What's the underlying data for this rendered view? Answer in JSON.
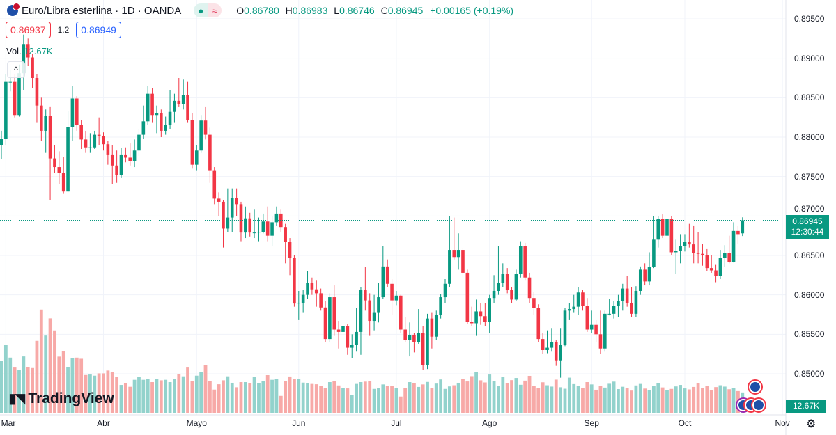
{
  "header": {
    "title": "Euro/Libra esterlina · 1D · OANDA",
    "status_dot": "●",
    "status_wave": "≈",
    "ohlc": {
      "o_label": "O",
      "o": "0.86780",
      "h_label": "H",
      "h": "0.86983",
      "l_label": "L",
      "l": "0.86746",
      "c_label": "C",
      "c": "0.86945",
      "change": "+0.00165 (+0.19%)"
    }
  },
  "trade": {
    "sell": "0.86937",
    "spread": "1.2",
    "buy": "0.86949"
  },
  "volume_legend": {
    "label": "Vol.",
    "value": "12.67K"
  },
  "collapse_icon": "^",
  "logo": {
    "mark": "TV",
    "text": "TradingView"
  },
  "price_tag": {
    "price": "0.86945",
    "countdown": "12:30:44"
  },
  "volume_tag": "12.67K",
  "colors": {
    "up": "#089981",
    "down": "#f23645",
    "up_volume": "#92d2cc",
    "down_volume": "#f7a9a7",
    "grid": "#f0f3fa"
  },
  "chart_data": {
    "type": "candlestick",
    "interval": "1D",
    "y_ticks": [
      "0.89500",
      "0.89000",
      "0.88500",
      "0.88000",
      "0.87500",
      "0.87000",
      "0.86500",
      "0.86000",
      "0.85500",
      "0.85000"
    ],
    "ylim": [
      0.8475,
      0.8975
    ],
    "x_ticks": [
      "Mar",
      "Abr",
      "Mayo",
      "Jun",
      "Jul",
      "Ago",
      "Sep",
      "Oct",
      "Nov"
    ],
    "grid": true,
    "first_open": 0.879,
    "last_open": 0.8678,
    "close": [
      0.8798,
      0.887,
      0.887,
      0.8828,
      0.8881,
      0.8918,
      0.8901,
      0.8875,
      0.884,
      0.8808,
      0.8827,
      0.8773,
      0.8762,
      0.8755,
      0.8731,
      0.8813,
      0.8849,
      0.8815,
      0.8797,
      0.8787,
      0.8787,
      0.8803,
      0.8801,
      0.8791,
      0.8778,
      0.8764,
      0.8752,
      0.8778,
      0.8774,
      0.877,
      0.8783,
      0.8803,
      0.882,
      0.8855,
      0.8828,
      0.883,
      0.8808,
      0.8815,
      0.8832,
      0.8846,
      0.8842,
      0.8853,
      0.8822,
      0.8765,
      0.8783,
      0.8821,
      0.8803,
      0.8758,
      0.8722,
      0.8718,
      0.8684,
      0.8698,
      0.8723,
      0.8715,
      0.8679,
      0.8697,
      0.8679,
      0.8679,
      0.868,
      0.8693,
      0.8675,
      0.8692,
      0.8703,
      0.8686,
      0.8667,
      0.8647,
      0.8589,
      0.859,
      0.86,
      0.8615,
      0.8607,
      0.8602,
      0.8584,
      0.8544,
      0.8597,
      0.8556,
      0.8553,
      0.856,
      0.8533,
      0.8537,
      0.8553,
      0.8606,
      0.8593,
      0.8567,
      0.8578,
      0.8597,
      0.8636,
      0.8614,
      0.8593,
      0.8599,
      0.8556,
      0.8543,
      0.8549,
      0.854,
      0.8552,
      0.8511,
      0.857,
      0.8547,
      0.8575,
      0.8597,
      0.8614,
      0.8657,
      0.8648,
      0.8657,
      0.8628,
      0.8566,
      0.8564,
      0.8579,
      0.8573,
      0.8566,
      0.8596,
      0.8605,
      0.8615,
      0.8627,
      0.8606,
      0.8594,
      0.8627,
      0.8662,
      0.8622,
      0.8596,
      0.8583,
      0.8544,
      0.853,
      0.8533,
      0.854,
      0.8517,
      0.8537,
      0.858,
      0.8582,
      0.8585,
      0.8603,
      0.8586,
      0.8556,
      0.8562,
      0.855,
      0.8532,
      0.8576,
      0.8576,
      0.8586,
      0.8592,
      0.8608,
      0.859,
      0.8576,
      0.8605,
      0.8632,
      0.8617,
      0.8635,
      0.867,
      0.8696,
      0.8675,
      0.8696,
      0.8654,
      0.8656,
      0.8662,
      0.8667,
      0.8664,
      0.8653,
      0.8652,
      0.865,
      0.8634,
      0.8631,
      0.8624,
      0.8647,
      0.8653,
      0.8642,
      0.8681,
      0.8677,
      0.86945
    ],
    "high": [
      0.8808,
      0.888,
      0.8885,
      0.888,
      0.8892,
      0.893,
      0.8925,
      0.8905,
      0.888,
      0.885,
      0.8835,
      0.8838,
      0.879,
      0.8782,
      0.8775,
      0.8833,
      0.8865,
      0.8852,
      0.8822,
      0.8808,
      0.8805,
      0.8808,
      0.8825,
      0.8806,
      0.8795,
      0.879,
      0.8783,
      0.8786,
      0.8787,
      0.8792,
      0.8797,
      0.881,
      0.884,
      0.8865,
      0.8862,
      0.884,
      0.8835,
      0.8826,
      0.886,
      0.8855,
      0.8875,
      0.8873,
      0.887,
      0.883,
      0.879,
      0.8828,
      0.8838,
      0.8812,
      0.8762,
      0.873,
      0.872,
      0.8735,
      0.8735,
      0.8735,
      0.8718,
      0.8712,
      0.8704,
      0.8708,
      0.8698,
      0.8703,
      0.8712,
      0.87,
      0.8712,
      0.8708,
      0.869,
      0.8672,
      0.865,
      0.8605,
      0.8606,
      0.863,
      0.8622,
      0.8618,
      0.8608,
      0.8592,
      0.8602,
      0.8612,
      0.8567,
      0.8588,
      0.8563,
      0.855,
      0.8583,
      0.861,
      0.8635,
      0.8602,
      0.86,
      0.8615,
      0.8662,
      0.8645,
      0.862,
      0.8605,
      0.86,
      0.8572,
      0.8565,
      0.8552,
      0.8582,
      0.856,
      0.8576,
      0.8578,
      0.858,
      0.8601,
      0.862,
      0.87,
      0.8698,
      0.8678,
      0.866,
      0.8632,
      0.8585,
      0.8594,
      0.859,
      0.859,
      0.86,
      0.8625,
      0.8662,
      0.864,
      0.8634,
      0.861,
      0.8632,
      0.8668,
      0.8666,
      0.8628,
      0.8604,
      0.8588,
      0.8552,
      0.8555,
      0.8558,
      0.8543,
      0.8558,
      0.8583,
      0.859,
      0.86,
      0.861,
      0.8606,
      0.8596,
      0.858,
      0.8568,
      0.858,
      0.858,
      0.8595,
      0.8592,
      0.86,
      0.8614,
      0.8624,
      0.861,
      0.8611,
      0.8636,
      0.864,
      0.8654,
      0.87,
      0.87,
      0.8702,
      0.8705,
      0.87,
      0.867,
      0.8677,
      0.8677,
      0.869,
      0.8688,
      0.868,
      0.8665,
      0.8658,
      0.865,
      0.8638,
      0.8657,
      0.8663,
      0.8675,
      0.8692,
      0.8688,
      0.86983
    ],
    "low": [
      0.8772,
      0.879,
      0.8858,
      0.8825,
      0.8826,
      0.886,
      0.889,
      0.8862,
      0.8818,
      0.8795,
      0.878,
      0.872,
      0.8755,
      0.874,
      0.8728,
      0.873,
      0.8795,
      0.8808,
      0.8785,
      0.878,
      0.878,
      0.8785,
      0.879,
      0.8783,
      0.8765,
      0.874,
      0.8742,
      0.8748,
      0.8768,
      0.8764,
      0.8762,
      0.8776,
      0.8798,
      0.8815,
      0.8818,
      0.8805,
      0.88,
      0.8803,
      0.881,
      0.8818,
      0.8838,
      0.8835,
      0.8818,
      0.876,
      0.8758,
      0.878,
      0.8797,
      0.8742,
      0.8715,
      0.87,
      0.866,
      0.868,
      0.868,
      0.87,
      0.8668,
      0.8672,
      0.8674,
      0.8672,
      0.8668,
      0.8678,
      0.8668,
      0.8662,
      0.8688,
      0.868,
      0.864,
      0.8625,
      0.8585,
      0.8568,
      0.8578,
      0.8595,
      0.86,
      0.8585,
      0.858,
      0.854,
      0.854,
      0.8548,
      0.8532,
      0.8548,
      0.8524,
      0.852,
      0.8528,
      0.8524,
      0.858,
      0.8548,
      0.8555,
      0.8565,
      0.8595,
      0.861,
      0.8575,
      0.8587,
      0.8552,
      0.854,
      0.8522,
      0.8527,
      0.8538,
      0.8505,
      0.8506,
      0.8532,
      0.8543,
      0.857,
      0.859,
      0.861,
      0.8645,
      0.8632,
      0.8622,
      0.8563,
      0.856,
      0.8548,
      0.8562,
      0.856,
      0.8552,
      0.859,
      0.86,
      0.861,
      0.8602,
      0.859,
      0.8592,
      0.8622,
      0.8618,
      0.859,
      0.8575,
      0.854,
      0.8525,
      0.8526,
      0.8528,
      0.851,
      0.8495,
      0.8535,
      0.8568,
      0.8578,
      0.8575,
      0.858,
      0.8553,
      0.8552,
      0.854,
      0.8525,
      0.8528,
      0.8574,
      0.857,
      0.8572,
      0.858,
      0.8585,
      0.8572,
      0.8572,
      0.86,
      0.8612,
      0.8612,
      0.8634,
      0.866,
      0.8672,
      0.8673,
      0.865,
      0.8627,
      0.864,
      0.8655,
      0.866,
      0.864,
      0.864,
      0.8637,
      0.863,
      0.8628,
      0.8616,
      0.862,
      0.8635,
      0.864,
      0.8641,
      0.8665,
      0.86746
    ],
    "volume_k": [
      31.9,
      41.3,
      33.7,
      27.7,
      26.3,
      34.4,
      28.1,
      27.4,
      43.8,
      62.7,
      47.0,
      57.4,
      50.1,
      34.3,
      37.4,
      28.1,
      33.2,
      33.7,
      33.0,
      23.2,
      23.5,
      22.8,
      24.2,
      24.2,
      25.9,
      25.2,
      22.0,
      17.2,
      18.3,
      16.1,
      20.3,
      22.0,
      20.3,
      21.0,
      18.9,
      20.6,
      20.0,
      20.3,
      18.9,
      21.0,
      23.8,
      22.4,
      27.7,
      19.6,
      22.8,
      24.9,
      29.1,
      19.6,
      14.4,
      17.6,
      20.0,
      22.4,
      18.5,
      15.8,
      18.9,
      18.9,
      18.3,
      22.0,
      18.2,
      19.7,
      23.1,
      20.3,
      20.7,
      10.6,
      19.7,
      22.3,
      20.6,
      20.6,
      18.6,
      18.3,
      17.8,
      17.6,
      16.5,
      15.5,
      18.9,
      19.7,
      16.9,
      15.5,
      15.1,
      11.1,
      17.8,
      18.9,
      19.2,
      19.5,
      14.8,
      15.5,
      17.5,
      16.4,
      16.7,
      15.3,
      10.2,
      15.5,
      18.9,
      18.1,
      16.0,
      17.5,
      19.0,
      15.2,
      18.0,
      20.5,
      14.8,
      16.3,
      17.0,
      18.5,
      21.0,
      19.3,
      22.5,
      24.8,
      20.0,
      18.7,
      23.5,
      19.6,
      16.8,
      22.0,
      18.2,
      20.1,
      21.4,
      17.3,
      19.8,
      22.7,
      16.5,
      15.4,
      18.8,
      17.0,
      16.2,
      20.4,
      15.8,
      14.9,
      21.6,
      17.7,
      16.4,
      15.2,
      18.9,
      17.5,
      14.3,
      16.8,
      15.6,
      17.9,
      19.2,
      14.7,
      16.1,
      15.5,
      13.8,
      16.9,
      17.8,
      15.0,
      14.2,
      16.6,
      18.4,
      15.7,
      13.9,
      14.8,
      16.3,
      17.2,
      15.1,
      14.5,
      16.0,
      18.1,
      15.4,
      16.7,
      14.0,
      15.9,
      17.0,
      16.2,
      14.6,
      15.3,
      13.5,
      12.67
    ]
  }
}
